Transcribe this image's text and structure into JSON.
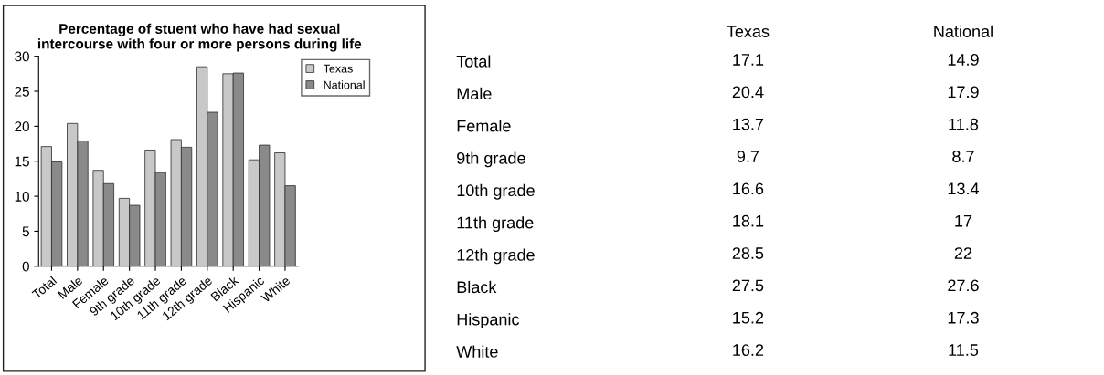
{
  "chart_data": [
    {
      "type": "bar",
      "title": "Percentage of stuent who have had sexual\nintercourse with four or more persons during life",
      "categories": [
        "Total",
        "Male",
        "Female",
        "9th grade",
        "10th grade",
        "11th grade",
        "12th grade",
        "Black",
        "Hispanic",
        "White"
      ],
      "series": [
        {
          "name": "Texas",
          "color": "#c8c8c8",
          "values": [
            17.1,
            20.4,
            13.7,
            9.7,
            16.6,
            18.1,
            28.5,
            27.5,
            15.2,
            16.2
          ]
        },
        {
          "name": "National",
          "color": "#8a8a8a",
          "values": [
            14.9,
            17.9,
            11.8,
            8.7,
            13.4,
            17,
            22,
            27.6,
            17.3,
            11.5
          ]
        }
      ],
      "ylim": [
        0,
        30
      ],
      "yticks": [
        0,
        5,
        10,
        15,
        20,
        25,
        30
      ],
      "grid": false,
      "legend": "right"
    },
    {
      "type": "heatmap",
      "categories": [
        "Texas",
        "National"
      ],
      "y_categories": [
        "Total",
        "Male",
        "Female",
        "9th grade",
        "10th grade",
        "11th grade",
        "12th grade",
        "Black",
        "Hispanic",
        "White"
      ],
      "cells": [
        [
          17.1,
          14.9
        ],
        [
          20.4,
          17.9
        ],
        [
          13.7,
          11.8
        ],
        [
          9.7,
          8.7
        ],
        [
          16.6,
          13.4
        ],
        [
          18.1,
          17
        ],
        [
          28.5,
          22
        ],
        [
          27.5,
          27.6
        ],
        [
          15.2,
          17.3
        ],
        [
          16.2,
          11.5
        ]
      ],
      "data_labels": true
    }
  ]
}
